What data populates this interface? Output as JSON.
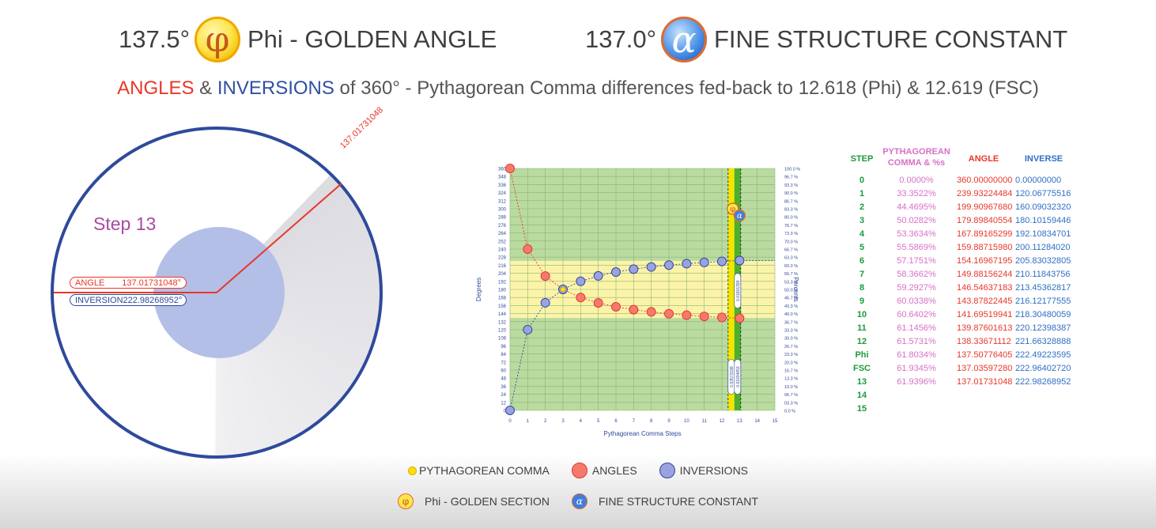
{
  "header": {
    "left_value": "137.5°",
    "left_title": "Phi - GOLDEN ANGLE",
    "right_value": "137.0°",
    "right_title": "FINE STRUCTURE CONSTANT",
    "phi_glyph": "φ",
    "alpha_glyph": "α"
  },
  "subtitle": {
    "angles": "ANGLES",
    "amp1": " & ",
    "inversions": "INVERSIONS",
    "rest": " of 360° - Pythagorean Comma differences fed-back to 12.618 (Phi) & 12.619 (FSC)"
  },
  "circle": {
    "step": "Step 13",
    "ray_label": "137.01731048",
    "angle_label": "ANGLE",
    "angle_value": "137.01731048°",
    "inversion_label": "INVERSION",
    "inversion_value": "222.98268952°",
    "angle_degrees": 137.01731048
  },
  "chart_data": {
    "type": "scatter",
    "xlabel": "Pythagorean Comma Steps",
    "ylabel": "Degrees",
    "y2label": "Percents",
    "xlim": [
      0,
      15
    ],
    "ylim": [
      0,
      360
    ],
    "xticks": [
      "0",
      "1",
      "2",
      "3",
      "4",
      "5",
      "6",
      "7",
      "8",
      "9",
      "10",
      "11",
      "12",
      "13",
      "14",
      "15"
    ],
    "yticks": [
      "0",
      "12",
      "24",
      "36",
      "48",
      "60",
      "72",
      "84",
      "96",
      "108",
      "120",
      "132",
      "144",
      "156",
      "168",
      "180",
      "192",
      "204",
      "216",
      "228",
      "240",
      "252",
      "264",
      "276",
      "288",
      "300",
      "312",
      "324",
      "336",
      "348",
      "360"
    ],
    "y2ticks": [
      "0.0 %",
      "03.3 %",
      "06.7 %",
      "10.0 %",
      "13.3 %",
      "16.7 %",
      "20.0 %",
      "23.3 %",
      "26.7 %",
      "30.0 %",
      "33.3 %",
      "36.7 %",
      "40.0 %",
      "43.3 %",
      "46.7 %",
      "50.0 %",
      "53.3 %",
      "56.7 %",
      "60.0 %",
      "63.3 %",
      "66.7 %",
      "70.0 %",
      "73.3 %",
      "76.7 %",
      "80.0 %",
      "83.3 %",
      "86.7 %",
      "90.0 %",
      "93.3 %",
      "96.7 %",
      "100.0 %"
    ],
    "yellow_band_degrees": [
      137.5,
      222.5
    ],
    "phi_x": 12.618,
    "fsc_x": 12.619,
    "vertical_labels": [
      "0.63573198",
      "0.61801399",
      "0.61934653"
    ],
    "series": [
      {
        "name": "ANGLES",
        "color": "#f47a6e",
        "x": [
          0,
          1,
          2,
          3,
          4,
          5,
          6,
          7,
          8,
          9,
          10,
          11,
          12,
          13
        ],
        "y": [
          360.0,
          239.93224484,
          199.9096768,
          179.89840554,
          167.89165299,
          159.8871598,
          154.16967195,
          149.88156244,
          146.54637183,
          143.87822445,
          141.69519941,
          139.87601613,
          138.33671112,
          137.01731048
        ]
      },
      {
        "name": "INVERSIONS",
        "color": "#9aa3e0",
        "x": [
          0,
          1,
          2,
          3,
          4,
          5,
          6,
          7,
          8,
          9,
          10,
          11,
          12,
          13
        ],
        "y": [
          0.0,
          120.06775516,
          160.0903232,
          180.10159446,
          192.10834701,
          200.1128402,
          205.83032805,
          210.11843756,
          213.45362817,
          216.12177555,
          218.30480059,
          220.12398387,
          221.66328888,
          222.98268952
        ]
      },
      {
        "name": "Phi",
        "x": [
          12.618
        ],
        "y": [
          222.49223595
        ]
      },
      {
        "name": "FSC",
        "x": [
          12.619
        ],
        "y": [
          222.9640272
        ]
      }
    ]
  },
  "table": {
    "headers": {
      "step": "STEP",
      "comma": "PYTHAGOREAN COMMA & %s",
      "angle": "ANGLE",
      "inverse": "INVERSE"
    },
    "rows": [
      {
        "step": "0",
        "comma": "0.0000%",
        "angle": "360.00000000",
        "inverse": "0.00000000"
      },
      {
        "step": "1",
        "comma": "33.3522%",
        "angle": "239.93224484",
        "inverse": "120.06775516"
      },
      {
        "step": "2",
        "comma": "44.4695%",
        "angle": "199.90967680",
        "inverse": "160.09032320"
      },
      {
        "step": "3",
        "comma": "50.0282%",
        "angle": "179.89840554",
        "inverse": "180.10159446"
      },
      {
        "step": "4",
        "comma": "53.3634%",
        "angle": "167.89165299",
        "inverse": "192.10834701"
      },
      {
        "step": "5",
        "comma": "55.5869%",
        "angle": "159.88715980",
        "inverse": "200.11284020"
      },
      {
        "step": "6",
        "comma": "57.1751%",
        "angle": "154.16967195",
        "inverse": "205.83032805"
      },
      {
        "step": "7",
        "comma": "58.3662%",
        "angle": "149.88156244",
        "inverse": "210.11843756"
      },
      {
        "step": "8",
        "comma": "59.2927%",
        "angle": "146.54637183",
        "inverse": "213.45362817"
      },
      {
        "step": "9",
        "comma": "60.0338%",
        "angle": "143.87822445",
        "inverse": "216.12177555"
      },
      {
        "step": "10",
        "comma": "60.6402%",
        "angle": "141.69519941",
        "inverse": "218.30480059"
      },
      {
        "step": "11",
        "comma": "61.1456%",
        "angle": "139.87601613",
        "inverse": "220.12398387"
      },
      {
        "step": "12",
        "comma": "61.5731%",
        "angle": "138.33671112",
        "inverse": "221.66328888"
      },
      {
        "step": "Phi",
        "comma": "61.8034%",
        "angle": "137.50776405",
        "inverse": "222.49223595"
      },
      {
        "step": "FSC",
        "comma": "61.9345%",
        "angle": "137.03597280",
        "inverse": "222.96402720"
      },
      {
        "step": "13",
        "comma": "61.9396%",
        "angle": "137.01731048",
        "inverse": "222.98268952"
      },
      {
        "step": "14",
        "comma": "",
        "angle": "",
        "inverse": ""
      },
      {
        "step": "15",
        "comma": "",
        "angle": "",
        "inverse": ""
      }
    ],
    "colors": {
      "step": "#1c9a3c",
      "comma": "#d870c6",
      "angle": "#e8372a",
      "inverse": "#2f6fc4"
    }
  },
  "legend": {
    "comma": "PYTHAGOREAN COMMA",
    "angles": "ANGLES",
    "inversions": "INVERSIONS",
    "phi": "Phi - GOLDEN SECTION",
    "fsc": "FINE STRUCTURE CONSTANT"
  }
}
